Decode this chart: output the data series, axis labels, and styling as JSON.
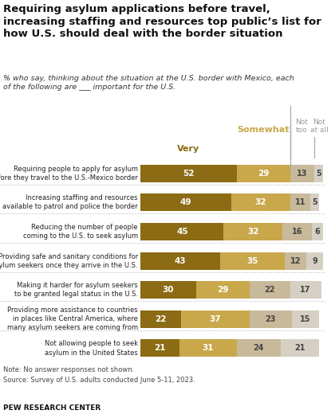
{
  "title": "Requiring asylum applications before travel,\nincreasing staffing and resources top public’s list for\nhow U.S. should deal with the border situation",
  "subtitle": "% who say, thinking about the situation at the U.S. border with Mexico, each\nof the following are ___ important for the U.S.",
  "note": "Note: No answer responses not shown.\nSource: Survey of U.S. adults conducted June 5-11, 2023.",
  "source_bold": "PEW RESEARCH CENTER",
  "categories": [
    "Requiring people to apply for asylum\nbefore they travel to the U.S.-Mexico border",
    "Increasing staffing and resources\navailable to patrol and police the border",
    "Reducing the number of people\ncoming to the U.S. to seek asylum",
    "Providing safe and sanitary conditions for\nasylum seekers once they arrive in the U.S.",
    "Making it harder for asylum seekers\nto be granted legal status in the U.S.",
    "Providing more assistance to countries\nin places like Central America, where\nmany asylum seekers are coming from",
    "Not allowing people to seek\nasylum in the United States"
  ],
  "very": [
    52,
    49,
    45,
    43,
    30,
    22,
    21
  ],
  "somewhat": [
    29,
    32,
    32,
    35,
    29,
    37,
    31
  ],
  "not_too": [
    13,
    11,
    16,
    12,
    22,
    23,
    24
  ],
  "not_at_all": [
    5,
    5,
    6,
    9,
    17,
    15,
    21
  ],
  "color_very": "#8B6B14",
  "color_somewhat": "#C9A84C",
  "color_not_too": "#C8B99A",
  "color_not_at_all": "#D5D0C3",
  "color_very_text": "#8B6B14",
  "color_somewhat_text": "#C9A84C",
  "color_not_text": "#999999",
  "bg_color": "#FFFFFF",
  "bar_height": 0.6,
  "figsize": [
    4.2,
    5.2
  ],
  "dpi": 100
}
